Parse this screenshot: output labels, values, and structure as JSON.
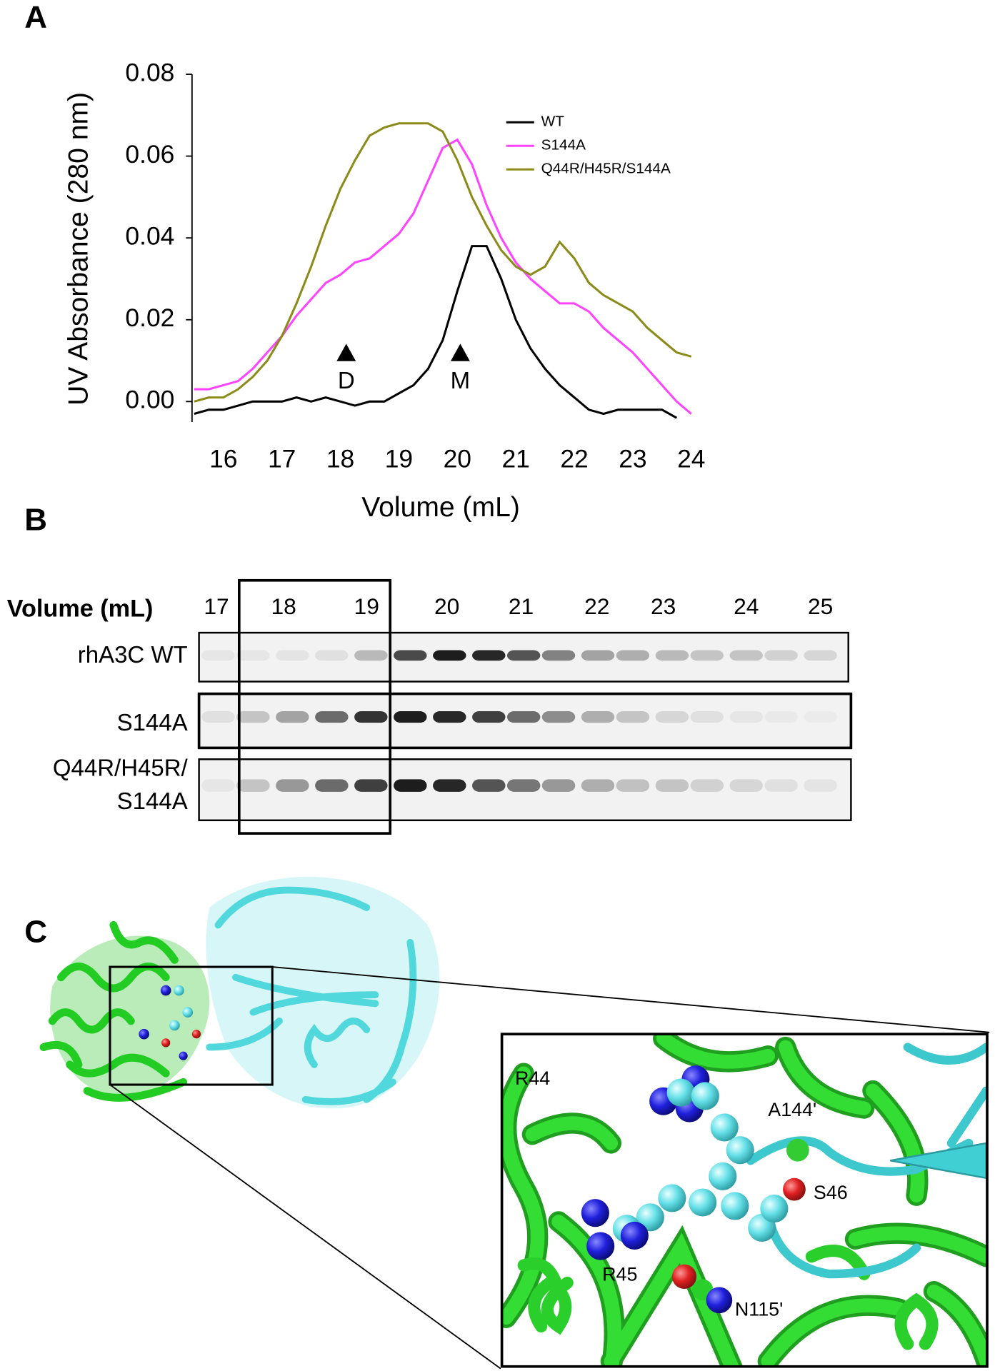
{
  "panel_labels": [
    "A",
    "B",
    "C"
  ],
  "chart_data": {
    "type": "line",
    "x_label": "Volume (mL)",
    "y_label": "UV Absorbance (280 nm)",
    "x": [
      15.5,
      15.75,
      16,
      16.25,
      16.5,
      16.75,
      17,
      17.25,
      17.5,
      17.75,
      18,
      18.25,
      18.5,
      18.75,
      19,
      19.25,
      19.5,
      19.75,
      20,
      20.25,
      20.5,
      20.75,
      21,
      21.25,
      21.5,
      21.75,
      22,
      22.25,
      22.5,
      22.75,
      23,
      23.25,
      23.5,
      23.75,
      24
    ],
    "series": [
      {
        "name": "WT",
        "color": "#000000",
        "values": [
          -0.003,
          -0.002,
          -0.002,
          -0.001,
          0,
          0,
          0,
          0.001,
          0,
          0.001,
          0,
          -0.001,
          0,
          0,
          0.002,
          0.004,
          0.008,
          0.015,
          0.027,
          0.038,
          0.038,
          0.03,
          0.02,
          0.013,
          0.008,
          0.004,
          0.001,
          -0.002,
          -0.003,
          -0.002,
          -0.002,
          -0.002,
          -0.002,
          -0.004,
          null
        ]
      },
      {
        "name": "S144A",
        "color": "#ff44ff",
        "values": [
          0.003,
          0.003,
          0.004,
          0.005,
          0.008,
          0.012,
          0.016,
          0.021,
          0.025,
          0.029,
          0.031,
          0.034,
          0.035,
          0.038,
          0.041,
          0.046,
          0.054,
          0.062,
          0.064,
          0.058,
          0.048,
          0.04,
          0.034,
          0.03,
          0.027,
          0.024,
          0.024,
          0.022,
          0.018,
          0.015,
          0.012,
          0.008,
          0.004,
          0,
          -0.003
        ]
      },
      {
        "name": "Q44R/H45R/S144A",
        "color": "#8b8b1a",
        "values": [
          0,
          0.001,
          0.001,
          0.003,
          0.006,
          0.01,
          0.016,
          0.024,
          0.033,
          0.043,
          0.052,
          0.059,
          0.065,
          0.067,
          0.068,
          0.068,
          0.068,
          0.066,
          0.059,
          0.05,
          0.043,
          0.037,
          0.033,
          0.031,
          0.033,
          0.039,
          0.035,
          0.029,
          0.026,
          0.024,
          0.022,
          0.018,
          0.015,
          0.012,
          0.011
        ]
      }
    ],
    "xlim": [
      15.5,
      24
    ],
    "xticks": [
      16,
      17,
      18,
      19,
      20,
      21,
      22,
      23,
      24
    ],
    "ylim": [
      -0.005,
      0.08
    ],
    "yticks": [
      {
        "value": 0,
        "label": "0.00"
      },
      {
        "value": 0.02,
        "label": "0.02"
      },
      {
        "value": 0.04,
        "label": "0.04"
      },
      {
        "value": 0.06,
        "label": "0.06"
      },
      {
        "value": 0.08,
        "label": "0.08"
      }
    ],
    "legend": "upper right",
    "annotations": [
      {
        "text": "D",
        "x": 18.1,
        "y": 0.012
      },
      {
        "text": "M",
        "x": 20.05,
        "y": 0.012
      }
    ]
  },
  "gel": {
    "header": "Volume (mL)",
    "fractions": [
      17,
      18,
      19,
      20,
      21,
      22,
      23,
      24,
      25
    ],
    "rows": [
      [
        "rhA3C WT"
      ],
      [
        "S144A"
      ],
      [
        "Q44R/H45R/",
        "S144A"
      ]
    ]
  },
  "structure": {
    "labels": [
      "R44",
      "A144'",
      "S46",
      "R45",
      "N115'"
    ]
  }
}
